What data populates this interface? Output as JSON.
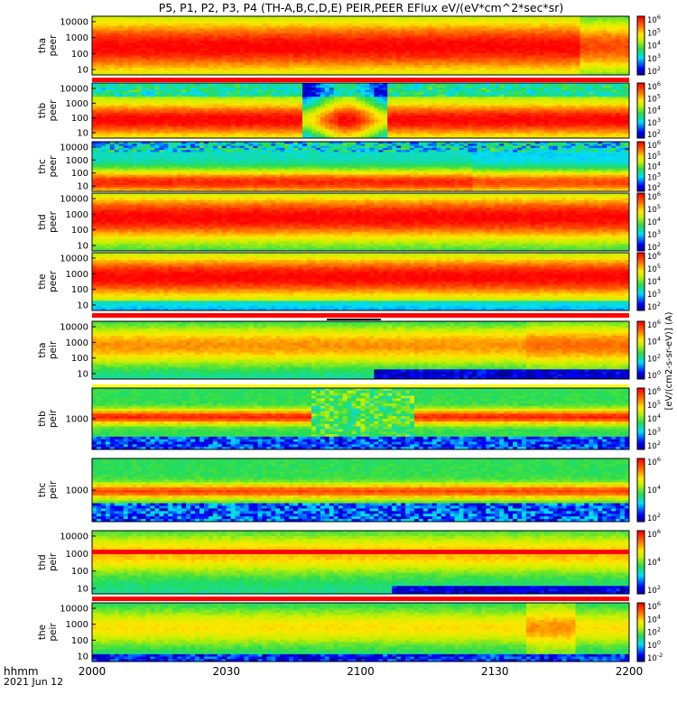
{
  "title": "P5, P1, P2, P3, P4 (TH-A,B,C,D,E) PEIR,PEER EFlux eV/(eV*cm^2*sec*sr)",
  "footer": {
    "time_label": "hhmm",
    "date_label": "2021 Jun 12"
  },
  "colorbar_label": "[eV/(cm2-s-sr-eV)] (A)",
  "colors": {
    "red": "#ff0000",
    "orange": "#ff9900",
    "yellow": "#ffff00",
    "green": "#33dd33",
    "cyan": "#33dddd",
    "blue": "#0000ff",
    "black": "#000000"
  },
  "chart_data": {
    "type": "heatmap",
    "xlabel": "hhmm",
    "x_ticks": [
      "2000",
      "2030",
      "2100",
      "2130",
      "2200"
    ],
    "panels": [
      {
        "id": "tha-peer",
        "probe": "tha",
        "product": "peer",
        "yticks": [
          "10",
          "100",
          "1000",
          "10000"
        ],
        "cb_ticks": [
          "10^2",
          "10^3",
          "10^4",
          "10^5",
          "10^6"
        ],
        "cb_exp": [
          "2",
          "3",
          "4",
          "5",
          "6"
        ],
        "profile": "peer_a"
      },
      {
        "id": "thb-peer",
        "probe": "thb",
        "product": "peer",
        "yticks": [
          "10",
          "100",
          "1000",
          "10000"
        ],
        "cb_ticks": [
          "10^2",
          "10^3",
          "10^4",
          "10^5",
          "10^6"
        ],
        "cb_exp": [
          "2",
          "3",
          "4",
          "5",
          "6"
        ],
        "profile": "peer_b"
      },
      {
        "id": "thc-peer",
        "probe": "thc",
        "product": "peer",
        "yticks": [
          "10",
          "100",
          "1000",
          "10000"
        ],
        "cb_ticks": [
          "10^2",
          "10^3",
          "10^4",
          "10^5",
          "10^6"
        ],
        "cb_exp": [
          "2",
          "3",
          "4",
          "5",
          "6"
        ],
        "profile": "peer_c"
      },
      {
        "id": "thd-peer",
        "probe": "thd",
        "product": "peer",
        "yticks": [
          "10",
          "100",
          "1000",
          "10000"
        ],
        "cb_ticks": [
          "10^2",
          "10^3",
          "10^4",
          "10^5",
          "10^6"
        ],
        "cb_exp": [
          "2",
          "3",
          "4",
          "5",
          "6"
        ],
        "profile": "peer_d"
      },
      {
        "id": "the-peer",
        "probe": "the",
        "product": "peer",
        "yticks": [
          "10",
          "100",
          "1000",
          "10000"
        ],
        "cb_ticks": [
          "10^2",
          "10^3",
          "10^4",
          "10^5",
          "10^6"
        ],
        "cb_exp": [
          "2",
          "3",
          "4",
          "5",
          "6"
        ],
        "profile": "peer_e"
      },
      {
        "id": "tha-peir",
        "probe": "tha",
        "product": "peir",
        "yticks": [
          "10",
          "100",
          "1000",
          "10000"
        ],
        "cb_ticks": [
          "10^0",
          "10^2",
          "10^4",
          "10^6"
        ],
        "cb_exp": [
          "0",
          "2",
          "4",
          "6"
        ],
        "profile": "peir_a"
      },
      {
        "id": "thb-peir",
        "probe": "thb",
        "product": "peir",
        "yticks": [
          "1000"
        ],
        "cb_ticks": [
          "10^2",
          "10^3",
          "10^4",
          "10^5",
          "10^6"
        ],
        "cb_exp": [
          "2",
          "3",
          "4",
          "5",
          "6"
        ],
        "profile": "peir_b"
      },
      {
        "id": "thc-peir",
        "probe": "thc",
        "product": "peir",
        "yticks": [
          "1000"
        ],
        "cb_ticks": [
          "10^2",
          "10^4",
          "10^6"
        ],
        "cb_exp": [
          "2",
          "4",
          "6"
        ],
        "profile": "peir_c"
      },
      {
        "id": "thd-peir",
        "probe": "thd",
        "product": "peir",
        "yticks": [
          "10",
          "100",
          "1000",
          "10000"
        ],
        "cb_ticks": [
          "10^2",
          "10^4",
          "10^6"
        ],
        "cb_exp": [
          "2",
          "4",
          "6"
        ],
        "profile": "peir_d"
      },
      {
        "id": "the-peir",
        "probe": "the",
        "product": "peir",
        "yticks": [
          "10",
          "100",
          "1000",
          "10000"
        ],
        "cb_ticks": [
          "10^-2",
          "10^0",
          "10^2",
          "10^4",
          "10^6"
        ],
        "cb_exp": [
          "-2",
          "0",
          "2",
          "4",
          "6"
        ],
        "profile": "peir_e"
      }
    ],
    "colorbar_scale": "log",
    "grid": false,
    "legend": "colorbars-right"
  }
}
